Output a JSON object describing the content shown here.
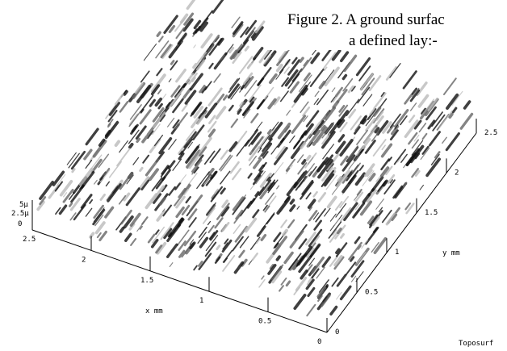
{
  "figure": {
    "caption_lines": [
      "Figure 2. A ground surfac",
      "a defined lay:-"
    ],
    "z_ticks": [
      "5µ",
      "2.5µ",
      "0"
    ],
    "x_ticks": [
      "2.5",
      "2",
      "1.5",
      "1",
      "0.5",
      "0"
    ],
    "x_label": "x mm",
    "y_ticks": [
      "0",
      "0.5",
      "1",
      "1.5",
      "2",
      "2.5"
    ],
    "y_label": "y mm",
    "software": "Toposurf"
  }
}
